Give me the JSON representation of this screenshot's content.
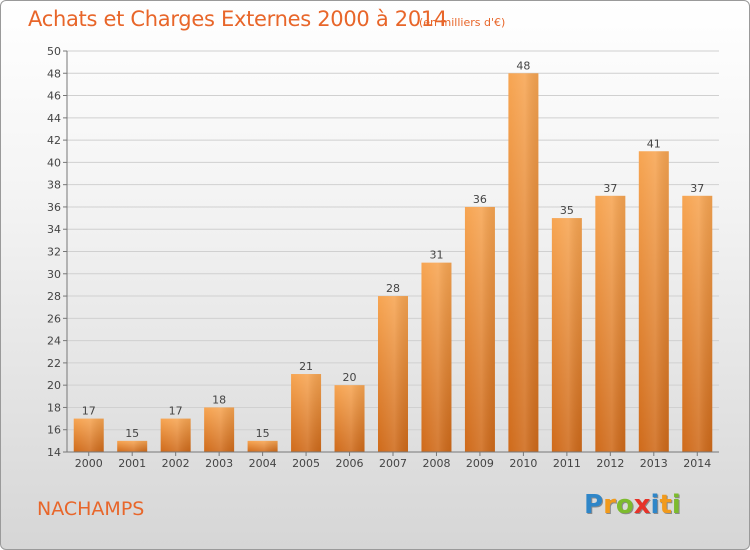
{
  "header": {
    "title": "Achats et Charges Externes 2000 à 2014",
    "subtitle": "(en milliers d'€)"
  },
  "footer": {
    "commune": "NACHAMPS",
    "logo_letters": [
      {
        "ch": "P",
        "color": "#2f86c8"
      },
      {
        "ch": "r",
        "color": "#f19a1c"
      },
      {
        "ch": "o",
        "color": "#7dbb2e"
      },
      {
        "ch": "x",
        "color": "#e6332a"
      },
      {
        "ch": "i",
        "color": "#2f86c8"
      },
      {
        "ch": "t",
        "color": "#f19a1c"
      },
      {
        "ch": "i",
        "color": "#7dbb2e"
      }
    ]
  },
  "chart_data": {
    "type": "bar",
    "categories": [
      "2000",
      "2001",
      "2002",
      "2003",
      "2004",
      "2005",
      "2006",
      "2007",
      "2008",
      "2009",
      "2010",
      "2011",
      "2012",
      "2013",
      "2014"
    ],
    "values": [
      17,
      15,
      17,
      18,
      15,
      21,
      20,
      28,
      31,
      36,
      48,
      35,
      37,
      41,
      37
    ],
    "data_labels": [
      "17",
      "15",
      "17",
      "18",
      "15",
      "21",
      "20",
      "28",
      "31",
      "36",
      "48",
      "35",
      "37",
      "41",
      "37"
    ],
    "ylim": [
      14,
      50
    ],
    "yticks": [
      "14",
      "16",
      "18",
      "20",
      "22",
      "24",
      "26",
      "28",
      "30",
      "32",
      "34",
      "36",
      "38",
      "40",
      "42",
      "44",
      "46",
      "48",
      "50"
    ],
    "grid": true,
    "legend": "none",
    "bar_color_top": "#f7a552",
    "bar_color_bottom": "#cf6a1a",
    "title_color": "#e8662a"
  }
}
